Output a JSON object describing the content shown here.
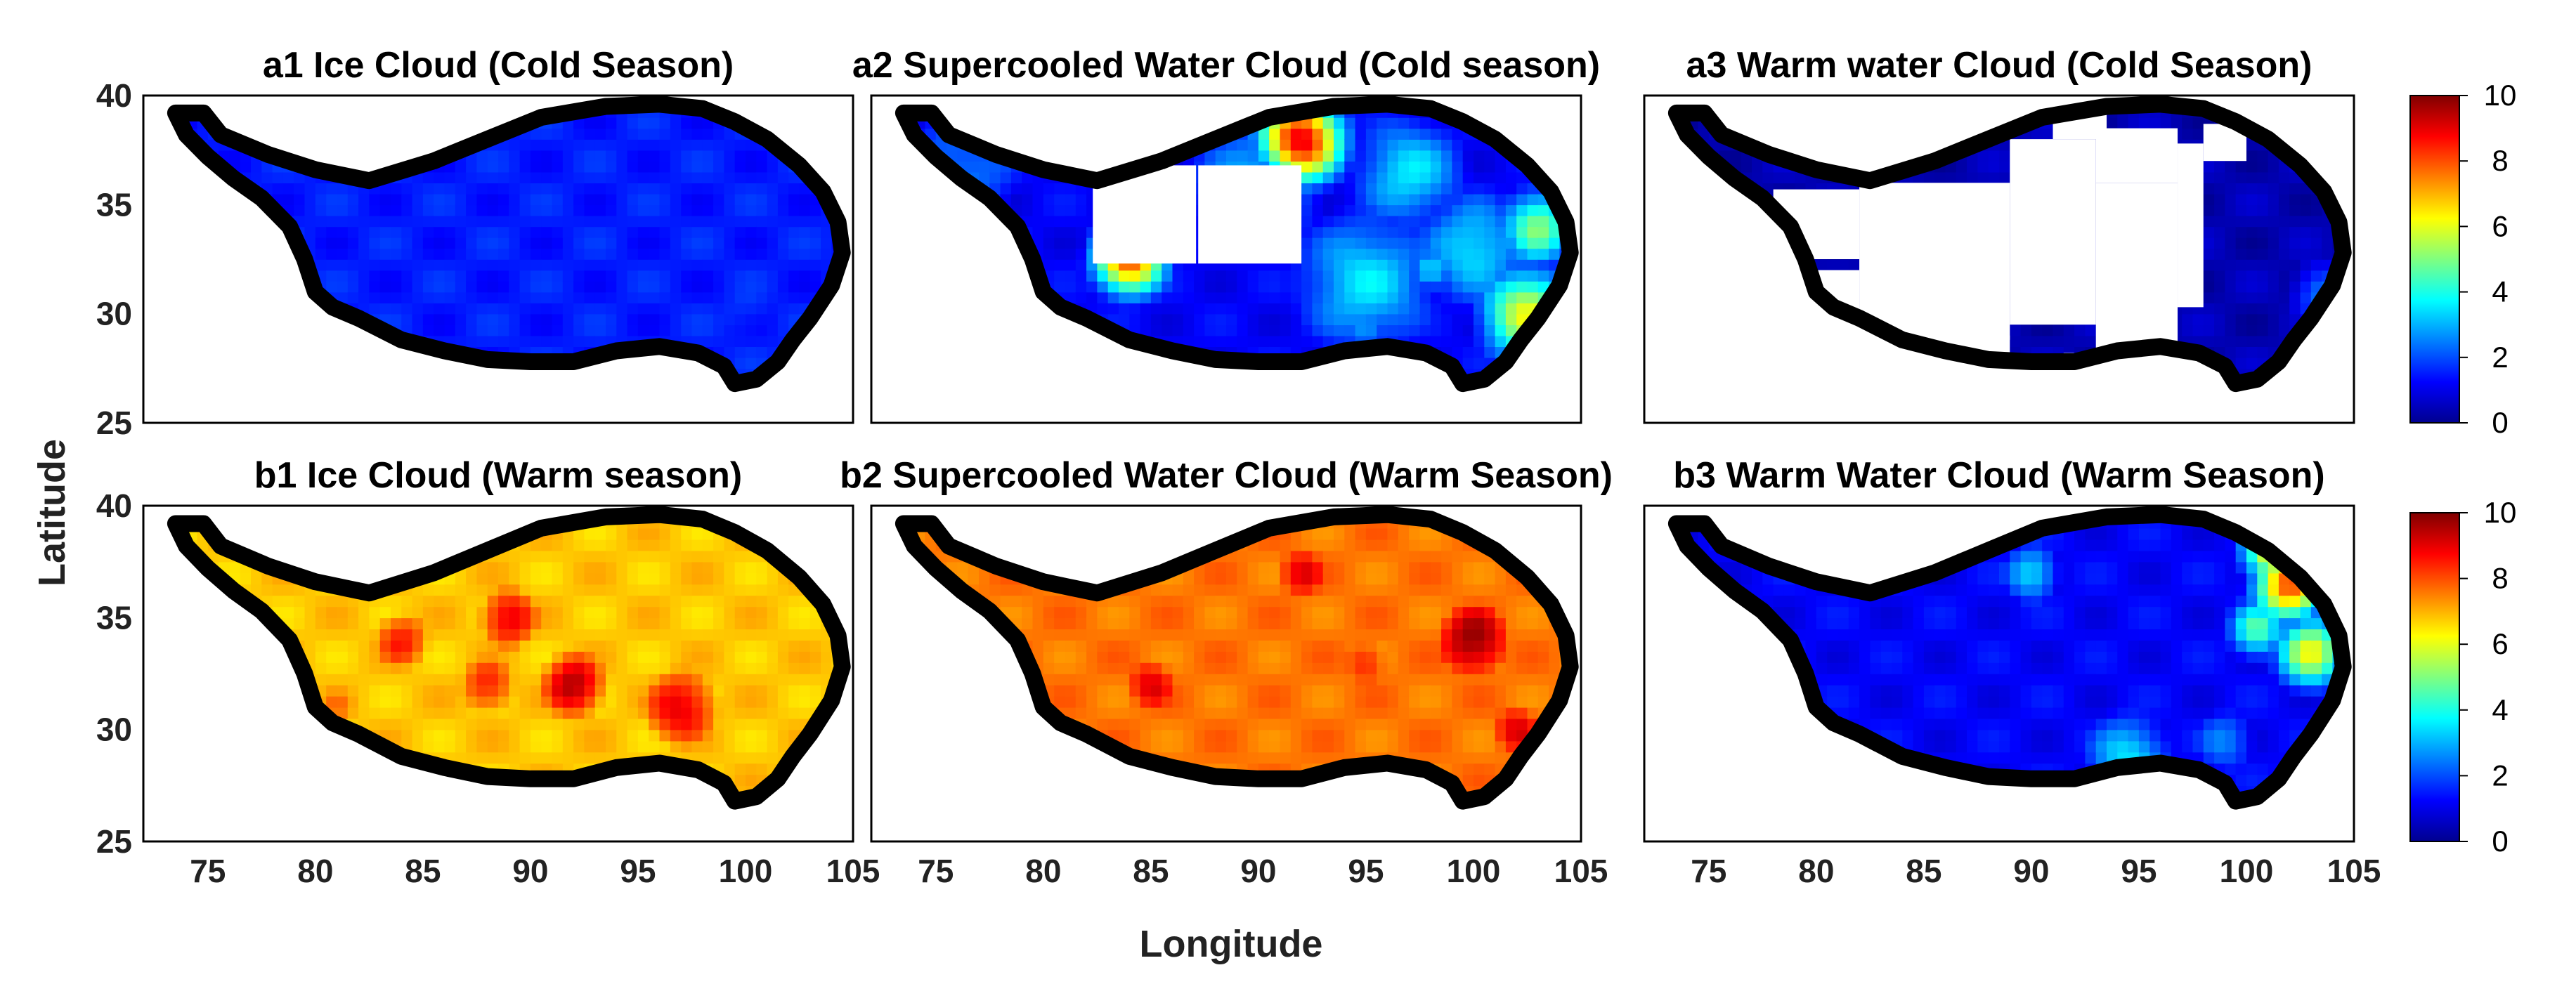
{
  "chart_data": {
    "type": "heatmap",
    "figure": {
      "xlabel": "Longitude",
      "ylabel": "Latitude",
      "xlim": [
        72,
        105
      ],
      "ylim": [
        25,
        40
      ],
      "xticks": [
        "75",
        "80",
        "85",
        "90",
        "95",
        "100",
        "105"
      ],
      "yticks": [
        "25",
        "30",
        "35",
        "40"
      ],
      "colorbar": {
        "range": [
          0,
          10
        ],
        "ticks": [
          "0",
          "2",
          "4",
          "6",
          "8",
          "10"
        ],
        "colormap": "jet"
      }
    },
    "panels": [
      {
        "id": "a1",
        "title": "a1 Ice Cloud (Cold Season)",
        "row": 0,
        "col": 0,
        "base": 1.5,
        "spots": [
          [
            100,
            30,
            2.0,
            1.8
          ],
          [
            97,
            32,
            2.5,
            1.0
          ],
          [
            88,
            31,
            2.5,
            0.8
          ],
          [
            83,
            33,
            3.0,
            0.6
          ],
          [
            98,
            35,
            4.0,
            0.6
          ]
        ],
        "masks": []
      },
      {
        "id": "a2",
        "title": "a2 Supercooled Water Cloud (Cold season)",
        "row": 0,
        "col": 1,
        "base": 1.2,
        "spots": [
          [
            92,
            38,
            1.4,
            9.0
          ],
          [
            84,
            32.5,
            1.2,
            8.0
          ],
          [
            102.5,
            30,
            1.6,
            6.0
          ],
          [
            103,
            34,
            1.3,
            5.0
          ],
          [
            97,
            36.5,
            2.0,
            3.5
          ],
          [
            95,
            31.5,
            2.5,
            3.5
          ],
          [
            90,
            36,
            2.5,
            3.0
          ],
          [
            100,
            33,
            2.0,
            3.5
          ],
          [
            76,
            36.5,
            2.5,
            2.5
          ],
          [
            98,
            32,
            0.8,
            3.5
          ],
          [
            95,
            29.5,
            1.0,
            3.0
          ]
        ],
        "masks": [
          [
            82.3,
            32.3,
            4.8,
            4.5
          ],
          [
            87.2,
            32.3,
            4.8,
            4.5
          ]
        ]
      },
      {
        "id": "a3",
        "title": "a3 Warm water Cloud (Cold Season)",
        "row": 0,
        "col": 2,
        "base": 0.5,
        "spots": [
          [
            103.5,
            31,
            1.0,
            2.5
          ]
        ],
        "masks": [
          [
            82.0,
            28.8,
            7.0,
            7.2
          ],
          [
            89.0,
            29.5,
            4.0,
            8.5
          ],
          [
            93.0,
            28.0,
            3.8,
            8.0
          ],
          [
            96.8,
            30.3,
            1.2,
            7.5
          ],
          [
            93.0,
            36.0,
            3.8,
            2.5
          ],
          [
            91.0,
            38.0,
            2.5,
            1.3
          ],
          [
            98.0,
            37.0,
            2.0,
            1.7
          ],
          [
            78.0,
            32.5,
            4.0,
            3.2
          ],
          [
            80.0,
            28.0,
            2.0,
            4.0
          ],
          [
            84.0,
            27.0,
            4.0,
            2.0
          ],
          [
            87.5,
            27.0,
            1.5,
            2.0
          ],
          [
            91.5,
            27.0,
            4.5,
            1.2
          ]
        ]
      },
      {
        "id": "b1",
        "title": "b1 Ice Cloud (Warm season)",
        "row": 1,
        "col": 0,
        "base": 6.8,
        "spots": [
          [
            89,
            35,
            2.0,
            9.0
          ],
          [
            92,
            32,
            2.0,
            9.5
          ],
          [
            97,
            31,
            2.5,
            9.0
          ],
          [
            84,
            34,
            2.0,
            8.5
          ],
          [
            88,
            32,
            2.0,
            8.5
          ],
          [
            94,
            38,
            2.5,
            4.5
          ],
          [
            102,
            33.5,
            2.0,
            4.0
          ],
          [
            76,
            37.5,
            2.5,
            3.5
          ],
          [
            96,
            37,
            2.0,
            5.0
          ],
          [
            81,
            31,
            2.0,
            7.5
          ]
        ],
        "masks": []
      },
      {
        "id": "b2",
        "title": "b2 Supercooled Water Cloud (Warm Season)",
        "row": 1,
        "col": 1,
        "base": 7.6,
        "spots": [
          [
            100,
            34,
            2.5,
            9.8
          ],
          [
            92,
            37,
            2.0,
            9.0
          ],
          [
            85,
            32,
            2.0,
            9.0
          ],
          [
            95,
            33,
            2.0,
            8.5
          ],
          [
            89,
            35,
            2.0,
            7.0
          ],
          [
            77,
            36,
            2.5,
            4.0
          ],
          [
            81,
            35,
            1.5,
            6.0
          ],
          [
            94,
            30,
            1.0,
            5.0
          ],
          [
            102,
            30,
            2.0,
            9.0
          ]
        ],
        "masks": []
      },
      {
        "id": "b3",
        "title": "b3 Warm Water Cloud (Warm Season)",
        "row": 1,
        "col": 2,
        "base": 1.2,
        "spots": [
          [
            102,
            36.5,
            1.2,
            8.0
          ],
          [
            103,
            33.5,
            1.2,
            6.0
          ],
          [
            101.5,
            38,
            1.2,
            7.0
          ],
          [
            100.5,
            34.5,
            1.0,
            4.5
          ],
          [
            90,
            37,
            1.0,
            3.5
          ],
          [
            94.5,
            28.8,
            1.5,
            3.5
          ],
          [
            99,
            29.5,
            1.2,
            2.5
          ]
        ],
        "masks": []
      }
    ]
  }
}
